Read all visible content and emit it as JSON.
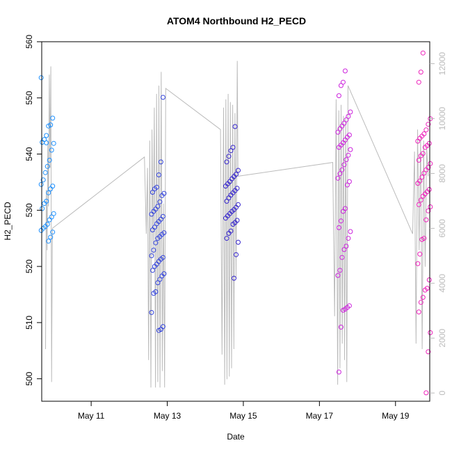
{
  "chart_data": {
    "type": "scatter",
    "title": "ATOM4 Northbound H2_PECD",
    "xlabel": "Date",
    "ylabel": "H2_PECD",
    "x_ticks": [
      {
        "day": 11,
        "label": "May 11"
      },
      {
        "day": 13,
        "label": "May 13"
      },
      {
        "day": 15,
        "label": "May 15"
      },
      {
        "day": 17,
        "label": "May 17"
      },
      {
        "day": 19,
        "label": "May 19"
      }
    ],
    "xlim": [
      9.7,
      19.9
    ],
    "ylim": [
      496,
      560
    ],
    "y_ticks": [
      500,
      510,
      520,
      530,
      540,
      550,
      560
    ],
    "y2_ticks": [
      0,
      2000,
      4000,
      6000,
      8000,
      10000,
      12000
    ],
    "y2lim": [
      -300,
      12800
    ],
    "series_colors": [
      "#1E90FF",
      "#3344DD",
      "#3322CC",
      "#CC22DD",
      "#EE22BB"
    ],
    "line_color": "#bbbbbb",
    "series": [
      {
        "day": 9.85,
        "y": [
          553.6,
          546.4,
          545.2,
          545.0,
          543.3,
          542.6,
          542.1,
          541.9,
          540.7,
          538.9,
          537.8,
          536.7,
          535.4,
          534.6,
          534.3,
          533.8,
          533.1,
          531.6,
          531.2,
          530.3,
          529.4,
          528.8,
          528.3,
          527.5,
          527.1,
          526.8,
          526.4,
          526.1,
          525.2,
          524.5,
          542.0
        ]
      },
      {
        "day": 12.75,
        "y": [
          550.1,
          538.6,
          536.3,
          534.1,
          533.8,
          533.2,
          533.0,
          532.6,
          531.5,
          530.7,
          530.2,
          529.8,
          529.3,
          528.9,
          528.4,
          528.0,
          527.6,
          527.0,
          526.5,
          526.0,
          525.7,
          525.3,
          525.0,
          524.2,
          522.9,
          521.9,
          521.6,
          521.3,
          520.9,
          520.4,
          520.0,
          519.3,
          518.7,
          518.3,
          517.7,
          517.1,
          515.5,
          515.2,
          511.8,
          509.3,
          508.8,
          508.6
        ]
      },
      {
        "day": 14.7,
        "y": [
          544.9,
          541.2,
          540.6,
          539.6,
          538.6,
          537.1,
          536.4,
          536.0,
          535.6,
          535.1,
          534.7,
          534.3,
          533.9,
          533.5,
          533.1,
          532.7,
          532.2,
          531.6,
          531.0,
          530.5,
          530.1,
          529.8,
          529.4,
          529.0,
          528.6,
          528.2,
          527.8,
          527.5,
          526.3,
          525.9,
          525.0,
          524.3,
          522.1,
          517.9
        ]
      },
      {
        "day": 17.65,
        "y": [
          554.8,
          552.8,
          552.2,
          550.4,
          547.5,
          546.7,
          546.1,
          545.5,
          545.0,
          544.5,
          543.9,
          543.4,
          543.0,
          542.5,
          542.0,
          541.6,
          541.2,
          540.8,
          539.8,
          539.0,
          538.1,
          537.2,
          536.5,
          535.7,
          535.1,
          534.5,
          530.3,
          529.8,
          528.1,
          526.9,
          526.2,
          525.0,
          523.6,
          523.0,
          521.6,
          519.3,
          518.4,
          513.0,
          512.7,
          512.4,
          512.2,
          509.2,
          501.2
        ]
      },
      {
        "day": 19.75,
        "y": [
          558.0,
          554.6,
          552.8,
          546.3,
          545.3,
          544.3,
          543.6,
          543.2,
          542.8,
          542.3,
          541.9,
          541.5,
          541.2,
          540.1,
          539.7,
          538.9,
          538.3,
          537.6,
          537.2,
          536.6,
          535.9,
          535.2,
          534.8,
          533.7,
          533.3,
          532.9,
          532.5,
          531.8,
          531.0,
          530.6,
          529.9,
          528.3,
          525.0,
          524.8,
          522.2,
          520.5,
          517.6,
          516.1,
          515.8,
          514.5,
          513.6,
          511.9,
          508.2,
          504.8,
          497.5
        ]
      }
    ],
    "secondary_line": {
      "label_axis": "right",
      "points": [
        {
          "day": 9.8,
          "v": 1600
        },
        {
          "day": 9.82,
          "v": 7400
        },
        {
          "day": 9.84,
          "v": 5200
        },
        {
          "day": 9.86,
          "v": 9200
        },
        {
          "day": 9.88,
          "v": 6800
        },
        {
          "day": 9.9,
          "v": 11600
        },
        {
          "day": 9.92,
          "v": 8200
        },
        {
          "day": 9.94,
          "v": 11900
        },
        {
          "day": 9.96,
          "v": 400
        },
        {
          "day": 9.98,
          "v": 6000
        },
        {
          "day": 12.4,
          "v": 8600
        },
        {
          "day": 12.45,
          "v": 5800
        },
        {
          "day": 12.48,
          "v": 8200
        },
        {
          "day": 12.51,
          "v": 1200
        },
        {
          "day": 12.54,
          "v": 9200
        },
        {
          "day": 12.57,
          "v": 200
        },
        {
          "day": 12.6,
          "v": 9600
        },
        {
          "day": 12.63,
          "v": 5000
        },
        {
          "day": 12.66,
          "v": 10400
        },
        {
          "day": 12.69,
          "v": 200
        },
        {
          "day": 12.72,
          "v": 10900
        },
        {
          "day": 12.75,
          "v": 400
        },
        {
          "day": 12.78,
          "v": 11200
        },
        {
          "day": 12.81,
          "v": 200
        },
        {
          "day": 12.84,
          "v": 11700
        },
        {
          "day": 12.87,
          "v": 800
        },
        {
          "day": 12.9,
          "v": 6900
        },
        {
          "day": 12.93,
          "v": 200
        },
        {
          "day": 12.96,
          "v": 11100
        },
        {
          "day": 14.4,
          "v": 9600
        },
        {
          "day": 14.44,
          "v": 1400
        },
        {
          "day": 14.48,
          "v": 10400
        },
        {
          "day": 14.51,
          "v": 300
        },
        {
          "day": 14.54,
          "v": 10700
        },
        {
          "day": 14.57,
          "v": 500
        },
        {
          "day": 14.6,
          "v": 10900
        },
        {
          "day": 14.63,
          "v": 600
        },
        {
          "day": 14.66,
          "v": 10600
        },
        {
          "day": 14.69,
          "v": 900
        },
        {
          "day": 14.72,
          "v": 10500
        },
        {
          "day": 14.75,
          "v": 1600
        },
        {
          "day": 14.78,
          "v": 10200
        },
        {
          "day": 14.81,
          "v": 4200
        },
        {
          "day": 14.84,
          "v": 12100
        },
        {
          "day": 14.86,
          "v": 7900
        },
        {
          "day": 17.35,
          "v": 8400
        },
        {
          "day": 17.4,
          "v": 2800
        },
        {
          "day": 17.44,
          "v": 10700
        },
        {
          "day": 17.48,
          "v": 300
        },
        {
          "day": 17.51,
          "v": 10300
        },
        {
          "day": 17.54,
          "v": 900
        },
        {
          "day": 17.57,
          "v": 10500
        },
        {
          "day": 17.6,
          "v": 1800
        },
        {
          "day": 17.63,
          "v": 10100
        },
        {
          "day": 17.66,
          "v": 1200
        },
        {
          "day": 17.69,
          "v": 10000
        },
        {
          "day": 17.72,
          "v": 400
        },
        {
          "day": 17.75,
          "v": 11200
        },
        {
          "day": 19.45,
          "v": 5800
        },
        {
          "day": 19.5,
          "v": 8800
        },
        {
          "day": 19.54,
          "v": 1800
        },
        {
          "day": 19.58,
          "v": 9600
        },
        {
          "day": 19.62,
          "v": 5200
        },
        {
          "day": 19.66,
          "v": 9300
        },
        {
          "day": 19.7,
          "v": 1600
        },
        {
          "day": 19.74,
          "v": 9200
        },
        {
          "day": 19.78,
          "v": 4600
        },
        {
          "day": 19.82,
          "v": 8900
        },
        {
          "day": 19.86,
          "v": 7900
        }
      ]
    },
    "grid": false,
    "legend": "none"
  }
}
